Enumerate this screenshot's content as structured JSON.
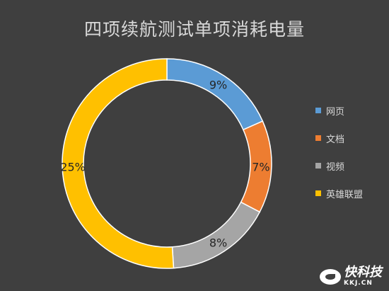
{
  "chart_data": {
    "type": "pie",
    "title": "四项续航测试单项消耗电量",
    "categories": [
      "网页",
      "文档",
      "视频",
      "英雄联盟"
    ],
    "values": [
      9,
      7,
      8,
      25
    ],
    "data_labels": [
      "9%",
      "7%",
      "8%",
      "25%"
    ],
    "colors": [
      "#5b9bd5",
      "#ed7d31",
      "#a5a5a5",
      "#ffc000"
    ],
    "donut": true,
    "legend_position": "right"
  },
  "watermark": {
    "main": "快科技",
    "sub": "KKJ.CN"
  }
}
